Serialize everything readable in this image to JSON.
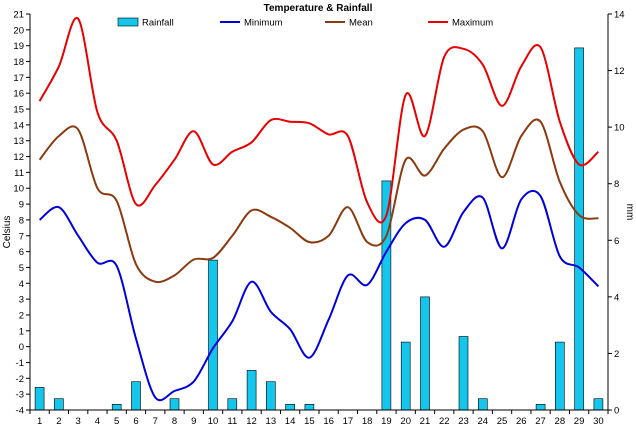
{
  "chart_data": {
    "type": "line+bar",
    "title": "Temperature & Rainfall",
    "ylabel_left": "Celsius",
    "ylabel_right": "mm",
    "ylim_left": [
      -4,
      21
    ],
    "ylim_right": [
      0,
      14
    ],
    "yticks_left": [
      -4,
      -3,
      -2,
      -1,
      0,
      1,
      2,
      3,
      4,
      5,
      6,
      7,
      8,
      9,
      10,
      11,
      12,
      13,
      14,
      15,
      16,
      17,
      18,
      19,
      20,
      21
    ],
    "yticks_right": [
      0,
      2,
      4,
      6,
      8,
      10,
      12,
      14
    ],
    "days": [
      1,
      2,
      3,
      4,
      5,
      6,
      7,
      8,
      9,
      10,
      11,
      12,
      13,
      14,
      15,
      16,
      17,
      18,
      19,
      20,
      21,
      22,
      23,
      24,
      25,
      26,
      27,
      28,
      29,
      30
    ],
    "legend_position": "top",
    "grid": false,
    "series": [
      {
        "name": "Rainfall",
        "kind": "bar",
        "axis": "right",
        "color": "#14c6ec",
        "values": [
          0.8,
          0.4,
          0,
          0,
          0.2,
          1.0,
          0,
          0.4,
          0,
          5.3,
          0.4,
          1.4,
          1.0,
          0.2,
          0.2,
          0,
          0,
          0,
          8.1,
          2.4,
          4.0,
          0,
          2.6,
          0.4,
          0,
          0,
          0.2,
          2.4,
          12.8,
          0.4
        ]
      },
      {
        "name": "Minimum",
        "kind": "line",
        "axis": "left",
        "color": "#0000dd",
        "values": [
          8.0,
          8.8,
          7.0,
          5.3,
          5.1,
          0.5,
          -3.2,
          -2.8,
          -2.2,
          -0.1,
          1.6,
          4.1,
          2.2,
          1.1,
          -0.7,
          1.7,
          4.5,
          3.9,
          6.0,
          7.8,
          8.0,
          6.3,
          8.5,
          9.4,
          6.2,
          9.3,
          9.5,
          5.7,
          5.0,
          3.8
        ]
      },
      {
        "name": "Mean",
        "kind": "line",
        "axis": "left",
        "color": "#8b3a10",
        "values": [
          11.8,
          13.3,
          13.7,
          10.0,
          9.2,
          5.2,
          4.1,
          4.5,
          5.5,
          5.6,
          7.0,
          8.6,
          8.2,
          7.5,
          6.6,
          7.0,
          8.8,
          6.6,
          7.0,
          11.8,
          10.8,
          12.5,
          13.7,
          13.6,
          10.7,
          13.3,
          14.2,
          10.4,
          8.3,
          8.1
        ]
      },
      {
        "name": "Maximum",
        "kind": "line",
        "axis": "left",
        "color": "#e80000",
        "values": [
          15.5,
          17.7,
          20.7,
          14.8,
          13.0,
          9.0,
          10.2,
          11.8,
          13.6,
          11.5,
          12.3,
          12.9,
          14.3,
          14.2,
          14.1,
          13.4,
          13.3,
          9.1,
          8.3,
          15.9,
          13.3,
          18.3,
          18.8,
          17.8,
          15.2,
          17.7,
          18.9,
          14.2,
          11.5,
          12.3
        ]
      }
    ]
  }
}
